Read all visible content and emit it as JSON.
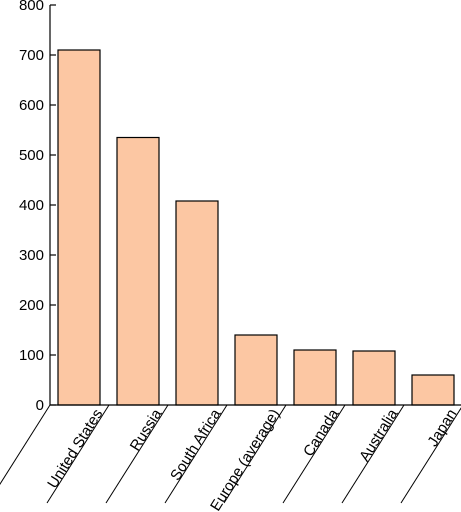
{
  "chart_data": {
    "type": "bar",
    "categories": [
      "United States",
      "Russia",
      "South Africa",
      "Europe (average)",
      "Canada",
      "Australia",
      "Japan"
    ],
    "values": [
      710,
      535,
      408,
      140,
      110,
      108,
      60
    ],
    "title": "",
    "xlabel": "",
    "ylabel": "",
    "ylim": [
      0,
      800
    ],
    "yticks": [
      0,
      100,
      200,
      300,
      400,
      500,
      600,
      700,
      800
    ],
    "grid": false,
    "legend": "none",
    "colors": {
      "bar_fill": "#fcc7a3",
      "bar_stroke": "#000000",
      "axis": "#000000"
    }
  }
}
